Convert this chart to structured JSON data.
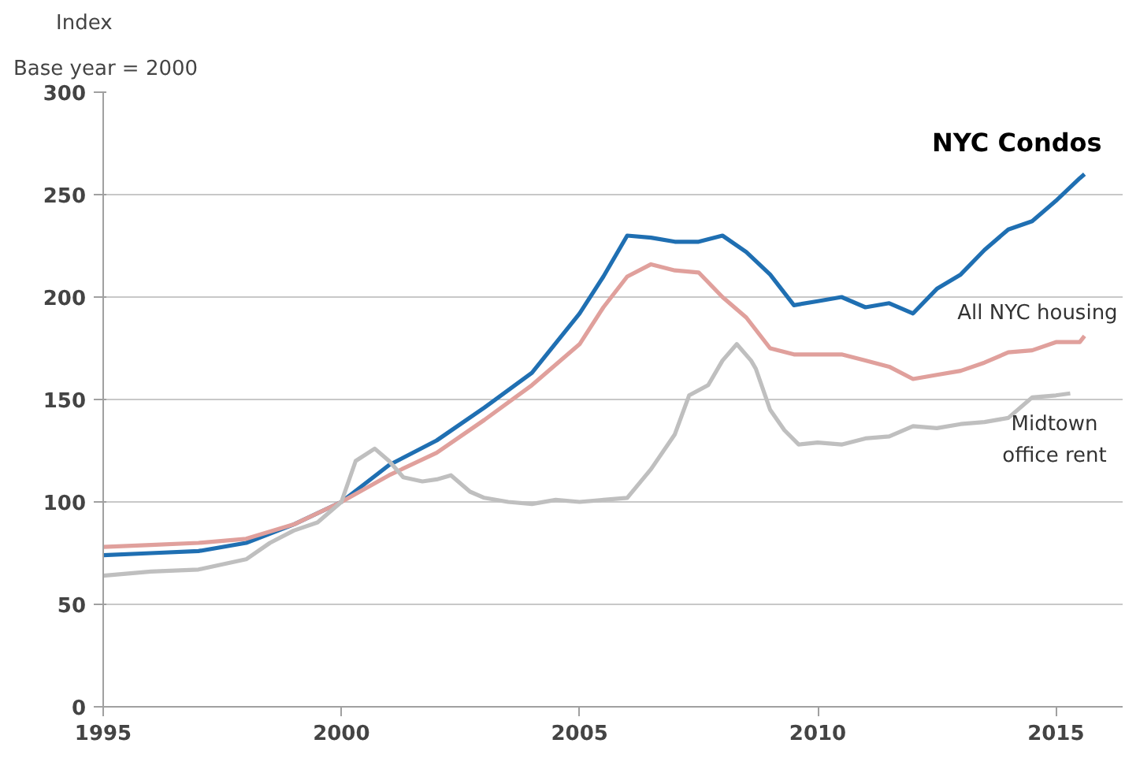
{
  "chart_data": {
    "type": "line",
    "title": "Index",
    "subtitle": "Base year = 2000",
    "xlim": [
      1995,
      2016.4
    ],
    "xticks": [
      1995,
      2000,
      2005,
      2010,
      2015
    ],
    "ylim": [
      0,
      300
    ],
    "yticks": [
      0,
      50,
      100,
      150,
      200,
      250,
      300
    ],
    "grid": "y",
    "legend": false,
    "marker": "none",
    "line_style": "solid",
    "series": [
      {
        "name": "NYC Condos",
        "color": "#1f6fb2",
        "x": [
          1995,
          1996,
          1997,
          1998,
          1999,
          2000,
          2001,
          2002,
          2003,
          2004,
          2005,
          2005.5,
          2006,
          2006.5,
          2007,
          2007.5,
          2008,
          2008.5,
          2009,
          2009.5,
          2010,
          2010.5,
          2011,
          2011.5,
          2012,
          2012.5,
          2013,
          2013.5,
          2014,
          2014.5,
          2015,
          2015.5,
          2015.6
        ],
        "values": [
          74,
          75,
          76,
          80,
          89,
          100,
          118,
          130,
          146,
          163,
          192,
          210,
          230,
          229,
          227,
          227,
          230,
          222,
          211,
          196,
          198,
          200,
          195,
          197,
          192,
          204,
          211,
          223,
          233,
          237,
          247,
          258,
          260
        ]
      },
      {
        "name": "All NYC housing",
        "color": "#e0a09c",
        "x": [
          1995,
          1996,
          1997,
          1998,
          1999,
          2000,
          2001,
          2002,
          2003,
          2004,
          2005,
          2005.5,
          2006,
          2006.5,
          2007,
          2007.5,
          2008,
          2008.5,
          2009,
          2009.5,
          2010,
          2010.5,
          2011,
          2011.5,
          2012,
          2012.5,
          2013,
          2013.5,
          2014,
          2014.5,
          2015,
          2015.5,
          2015.6
        ],
        "values": [
          78,
          79,
          80,
          82,
          89,
          100,
          113,
          124,
          140,
          157,
          177,
          195,
          210,
          216,
          213,
          212,
          200,
          190,
          175,
          172,
          172,
          172,
          169,
          166,
          160,
          162,
          164,
          168,
          173,
          174,
          178,
          178,
          181
        ]
      },
      {
        "name": "Midtown office rent",
        "color": "#bfbfbf",
        "x": [
          1995,
          1996,
          1997,
          1998,
          1998.5,
          1999,
          1999.5,
          2000,
          2000.3,
          2000.7,
          2001,
          2001.3,
          2001.7,
          2002,
          2002.3,
          2002.7,
          2003,
          2003.5,
          2004,
          2004.5,
          2005,
          2005.5,
          2006,
          2006.5,
          2007,
          2007.3,
          2007.7,
          2008,
          2008.3,
          2008.6,
          2008.7,
          2009,
          2009.3,
          2009.6,
          2010,
          2010.5,
          2011,
          2011.5,
          2012,
          2012.5,
          2013,
          2013.5,
          2014,
          2014.5,
          2015,
          2015.3
        ],
        "values": [
          64,
          66,
          67,
          72,
          80,
          86,
          90,
          100,
          120,
          126,
          120,
          112,
          110,
          111,
          113,
          105,
          102,
          100,
          99,
          101,
          100,
          101,
          102,
          116,
          133,
          152,
          157,
          169,
          177,
          169,
          165,
          145,
          135,
          128,
          129,
          128,
          131,
          132,
          137,
          136,
          138,
          139,
          141,
          151,
          152,
          153
        ]
      }
    ]
  }
}
